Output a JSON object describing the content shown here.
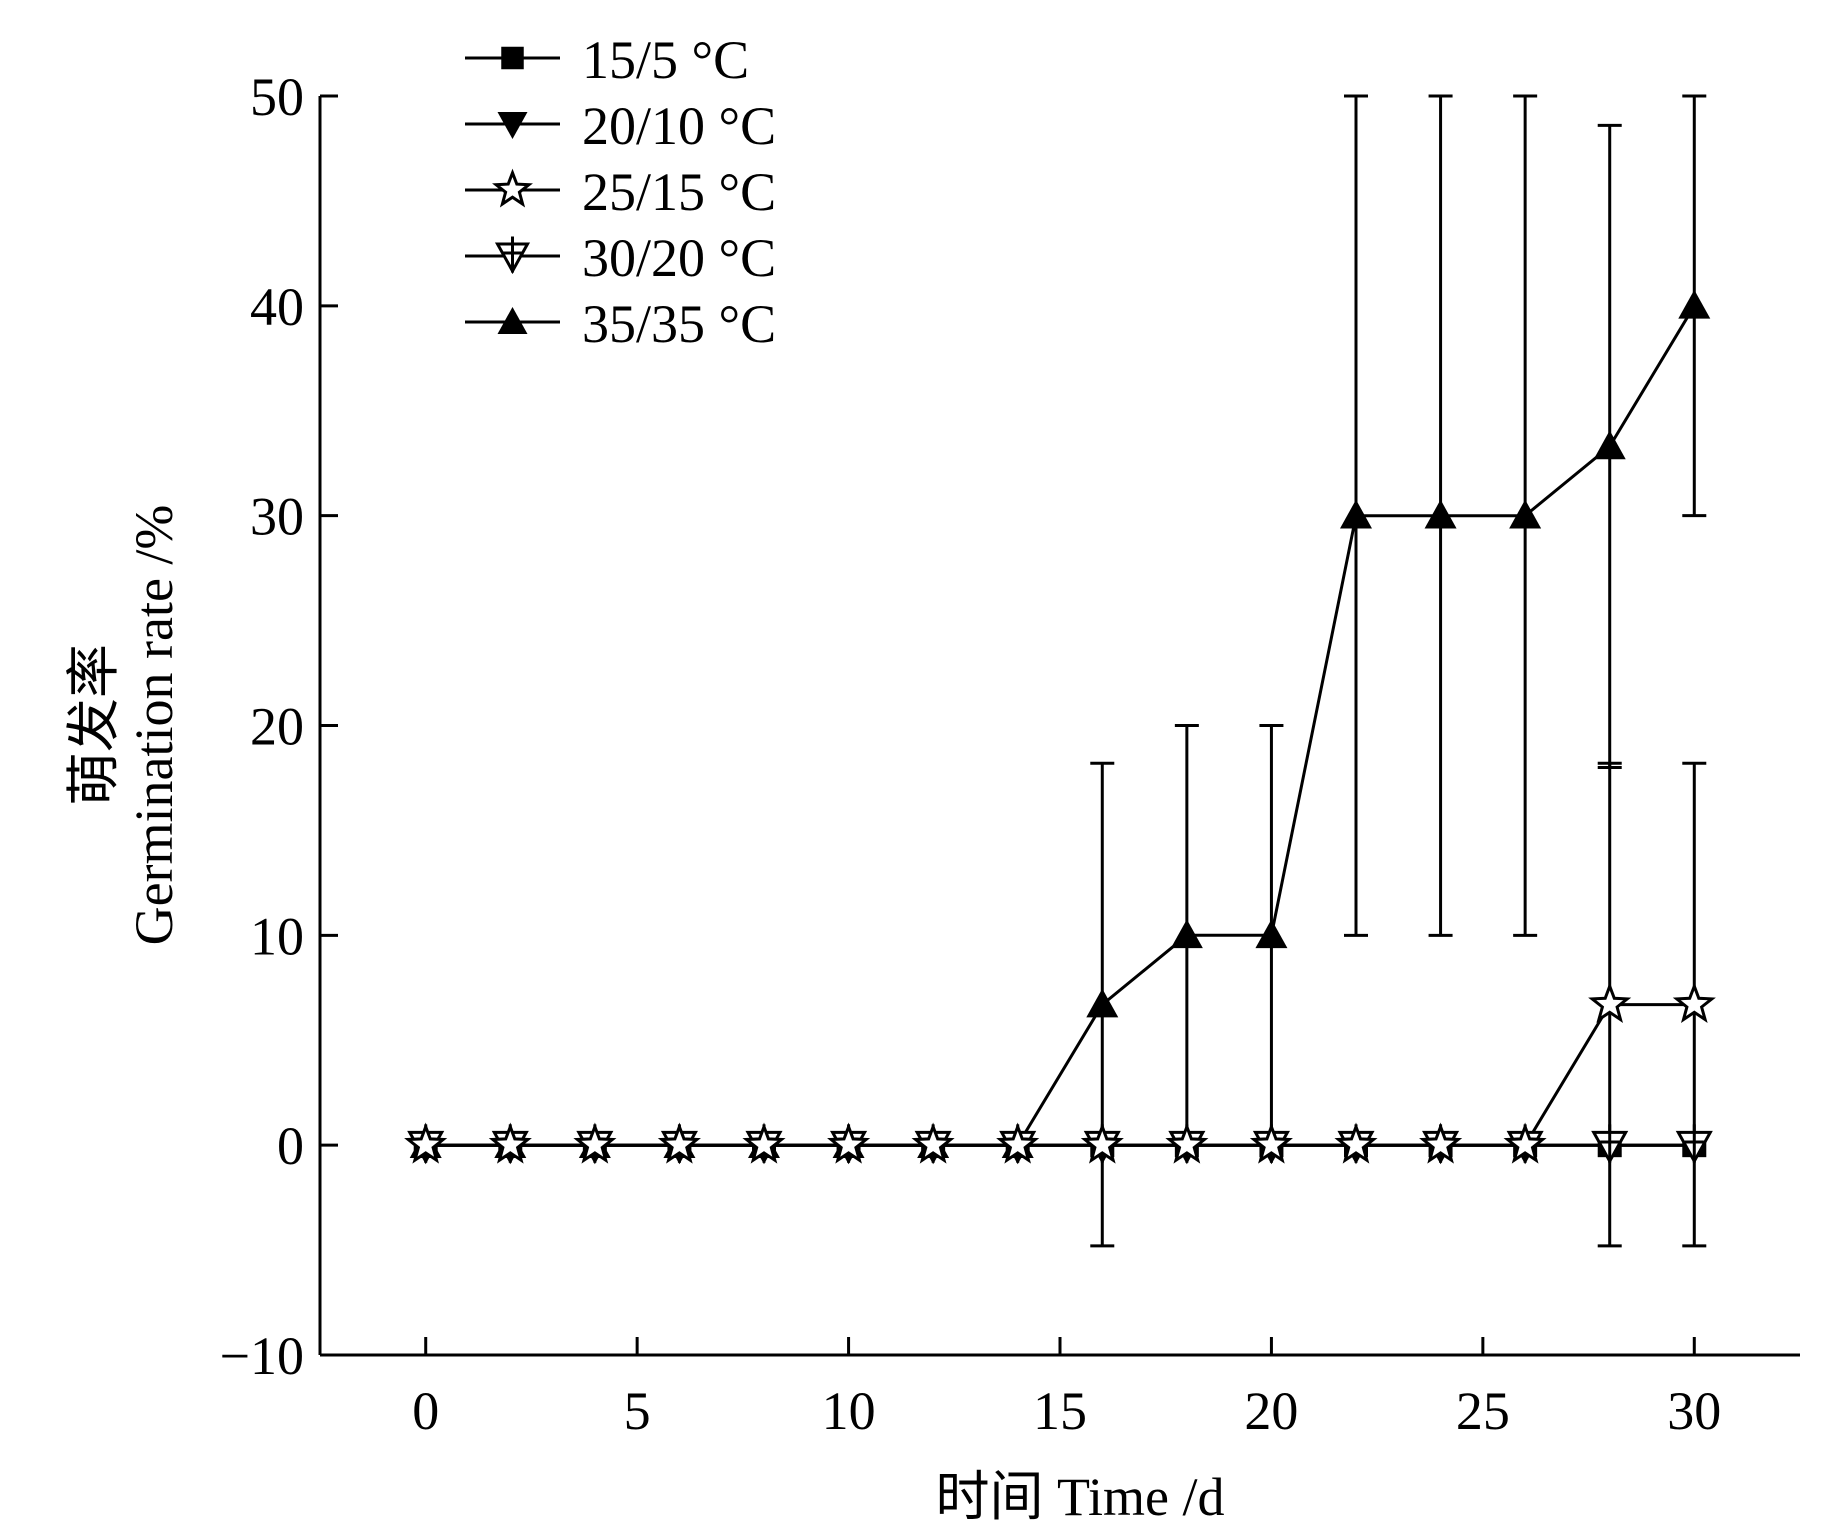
{
  "chart_data": {
    "type": "line",
    "xlabel": "时间 Time /d",
    "ylabel_cn": "萌发率",
    "ylabel_en": "Germination rate /%",
    "xlim": [
      -2.5,
      32.5
    ],
    "ylim": [
      -10,
      50
    ],
    "xticks": [
      0,
      5,
      10,
      15,
      20,
      25,
      30
    ],
    "yticks": [
      -10,
      0,
      10,
      20,
      30,
      40,
      50
    ],
    "x": [
      0,
      2,
      4,
      6,
      8,
      10,
      12,
      14,
      16,
      18,
      20,
      22,
      24,
      26,
      28,
      30
    ],
    "legend_position": "top-left",
    "series": [
      {
        "name": "15/5 °C",
        "marker": "square-filled",
        "values": [
          0,
          0,
          0,
          0,
          0,
          0,
          0,
          0,
          0,
          0,
          0,
          0,
          0,
          0,
          0,
          0
        ],
        "error": [
          0,
          0,
          0,
          0,
          0,
          0,
          0,
          0,
          0,
          0,
          0,
          0,
          0,
          0,
          0,
          0
        ]
      },
      {
        "name": "20/10 °C",
        "marker": "triangle-down-filled",
        "values": [
          0,
          0,
          0,
          0,
          0,
          0,
          0,
          0,
          0,
          0,
          0,
          0,
          0,
          0,
          0,
          0
        ],
        "error": [
          0,
          0,
          0,
          0,
          0,
          0,
          0,
          0,
          0,
          0,
          0,
          0,
          0,
          0,
          0,
          0
        ]
      },
      {
        "name": "25/15 °C",
        "marker": "star-open",
        "values": [
          0,
          0,
          0,
          0,
          0,
          0,
          0,
          0,
          0,
          0,
          0,
          0,
          0,
          0,
          6.7,
          6.7
        ],
        "error": [
          0,
          0,
          0,
          0,
          0,
          0,
          0,
          0,
          0,
          0,
          0,
          0,
          0,
          0,
          11.5,
          11.5
        ]
      },
      {
        "name": "30/20 °C",
        "marker": "triangle-down-open-cross",
        "values": [
          0,
          0,
          0,
          0,
          0,
          0,
          0,
          0,
          0,
          0,
          0,
          0,
          0,
          0,
          0,
          0
        ],
        "error": [
          0,
          0,
          0,
          0,
          0,
          0,
          0,
          0,
          0,
          0,
          0,
          0,
          0,
          0,
          0,
          0
        ]
      },
      {
        "name": "35/35 °C",
        "marker": "triangle-up-filled",
        "values": [
          0,
          0,
          0,
          0,
          0,
          0,
          0,
          0,
          6.7,
          10,
          10,
          30,
          30,
          30,
          33.3,
          40
        ],
        "error": [
          0,
          0,
          0,
          0,
          0,
          0,
          0,
          0,
          11.5,
          10,
          10,
          20,
          20,
          20,
          15.3,
          10
        ]
      }
    ]
  }
}
